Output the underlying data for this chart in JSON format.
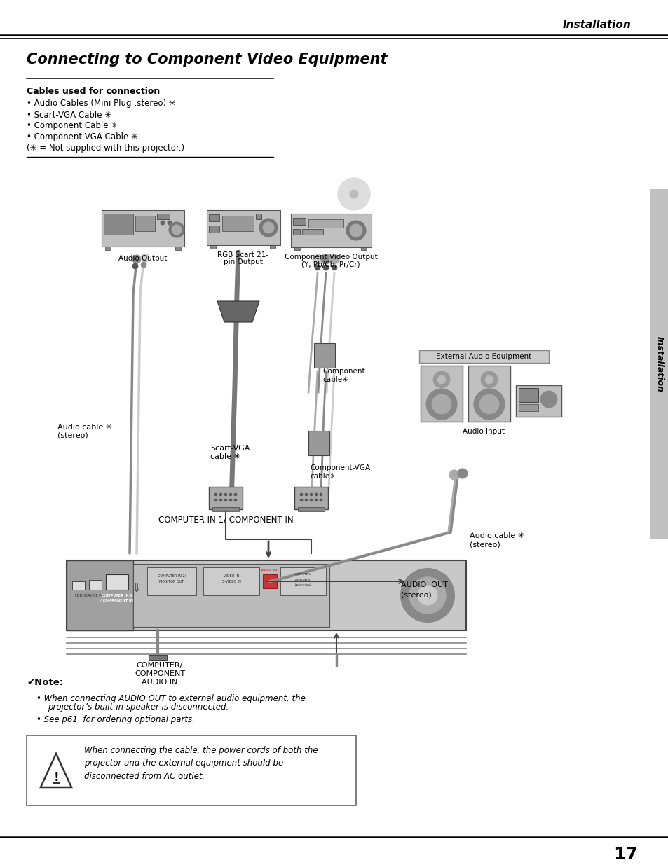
{
  "bg_color": "#ffffff",
  "page_number": "17",
  "header_title": "Installation",
  "section_title": "Connecting to Component Video Equipment",
  "cables_header": "Cables used for connection",
  "cable_items": [
    "Audio Cables (Mini Plug :stereo) ✳",
    "Scart-VGA Cable ✳",
    "Component Cable ✳",
    "Component-VGA Cable ✳"
  ],
  "asterisk_note": "(✳ = Not supplied with this projector.)",
  "note_header": "✔Note:",
  "note_line1a": "When connecting AUDIO OUT to external audio equipment, the",
  "note_line1b": "projector’s built-in speaker is disconnected.",
  "note_line2": "See p61  for ordering optional parts.",
  "warn_line1": "When connecting the cable, the power cords of both the",
  "warn_line2": "projector and the external equipment should be",
  "warn_line3": "disconnected from AC outlet.",
  "sidebar_text": "Installation",
  "lbl_audio_output": "Audio Output",
  "lbl_rgb_scart_1": "RGB Scart 21-",
  "lbl_rgb_scart_2": "pin Output",
  "lbl_comp_video_1": "Component Video Output",
  "lbl_comp_video_2": "(Y, Pb/Cb, Pr/Cr)",
  "lbl_audio_cable_1": "Audio cable ✳",
  "lbl_audio_cable_2": "(stereo)",
  "lbl_scart_vga_1": "Scart-VGA",
  "lbl_scart_vga_2": "cable ✳",
  "lbl_comp_cable_1": "Component",
  "lbl_comp_cable_2": "cable✳",
  "lbl_comp_vga_1": "Component-VGA",
  "lbl_comp_vga_2": "cable✳",
  "lbl_computer_in": "COMPUTER IN 1/ COMPONENT IN",
  "lbl_comp_audio_1": "COMPUTER/",
  "lbl_comp_audio_2": "COMPONENT",
  "lbl_comp_audio_3": "AUDIO IN",
  "lbl_audio_out_1": "AUDIO  OUT",
  "lbl_audio_out_2": "(stereo)",
  "lbl_audio_input": "Audio Input",
  "lbl_ext_audio": "External Audio Equipment",
  "lbl_audio_cable_r1": "Audio cable ✳",
  "lbl_audio_cable_r2": "(stereo)"
}
